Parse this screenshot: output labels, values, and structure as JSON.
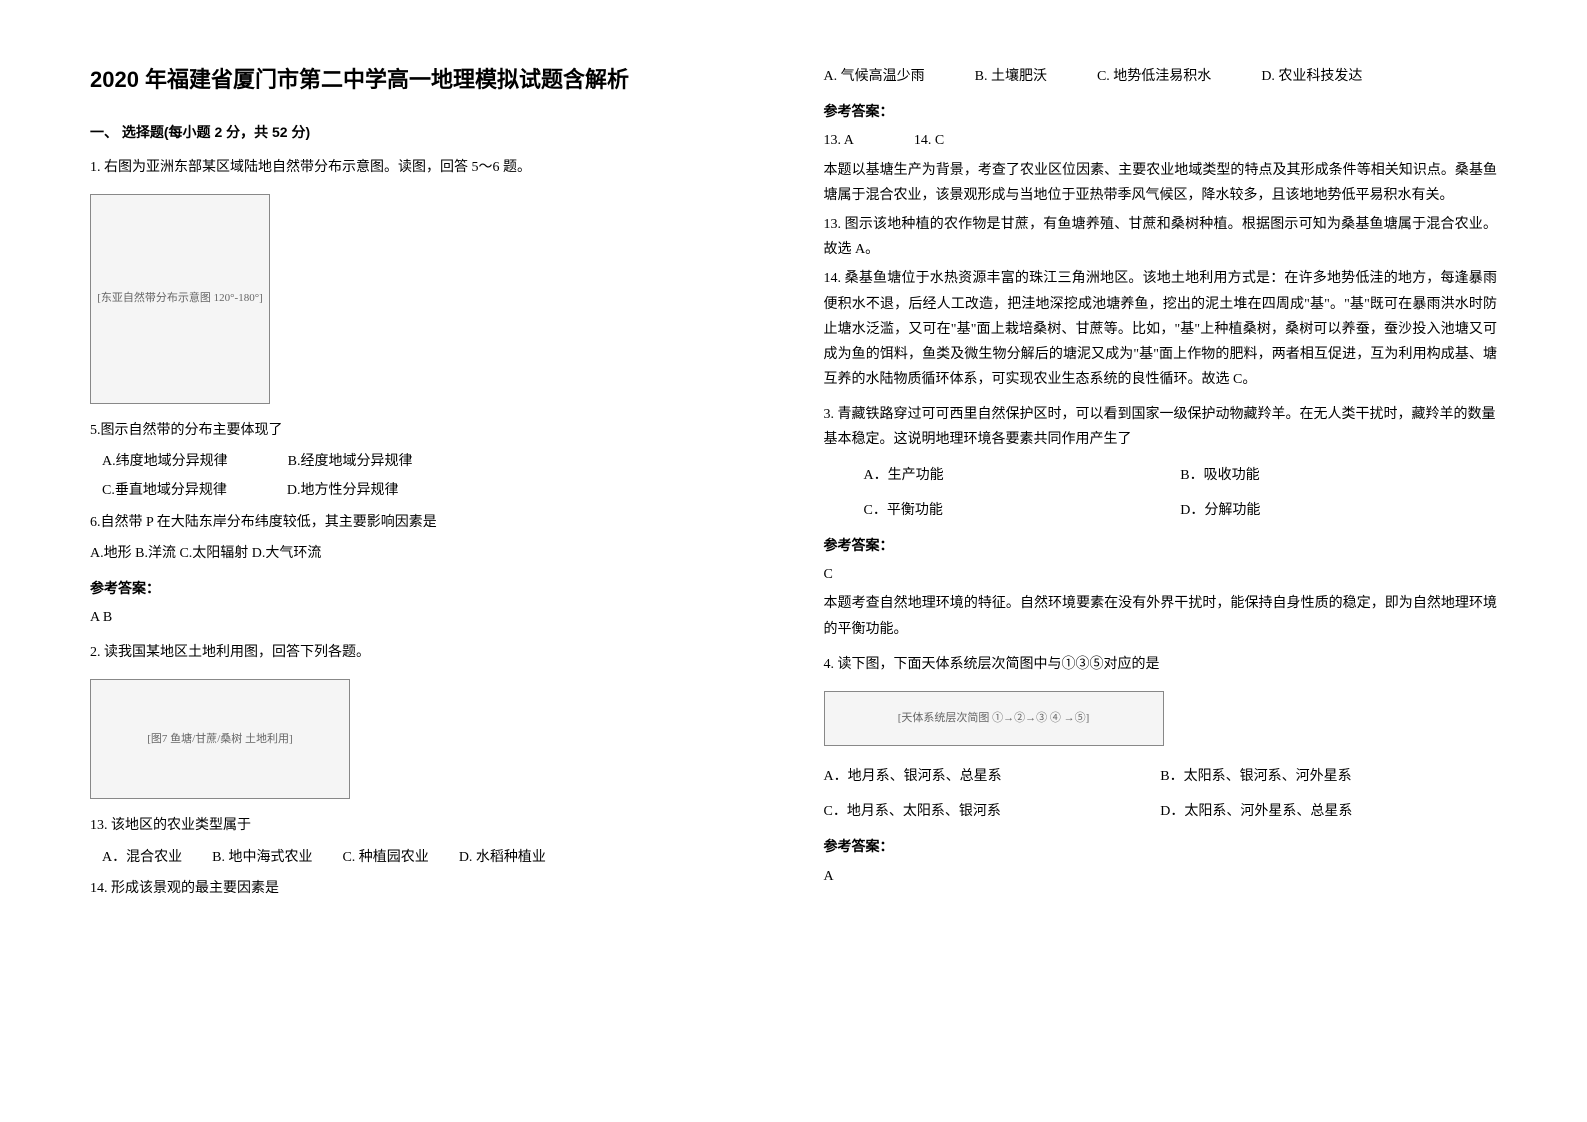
{
  "title": "2020 年福建省厦门市第二中学高一地理模拟试题含解析",
  "section1": "一、 选择题(每小题 2 分，共 52 分)",
  "q1": {
    "intro": "1. 右图为亚洲东部某区域陆地自然带分布示意图。读图，回答 5～6 题。",
    "img_label": "[东亚自然带分布示意图 120°-180°]",
    "s5": "5.图示自然带的分布主要体现了",
    "s5_opts": {
      "a": "A.纬度地域分异规律",
      "b": "B.经度地域分异规律",
      "c": "C.垂直地域分异规律",
      "d": "D.地方性分异规律"
    },
    "s6": "6.自然带 P 在大陆东岸分布纬度较低，其主要影响因素是",
    "s6_opts": "A.地形  B.洋流  C.太阳辐射  D.大气环流",
    "ans_label": "参考答案：",
    "ans": "A  B"
  },
  "q2": {
    "intro": "2. 读我国某地区土地利用图，回答下列各题。",
    "img_label": "[图7 鱼塘/甘蔗/桑树 土地利用]",
    "s13": "13.  该地区的农业类型属于",
    "s13_opts": {
      "a": "A．混合农业",
      "b": "B.  地中海式农业",
      "c": "C.  种植园农业",
      "d": "D.  水稻种植业"
    },
    "s14": "14.  形成该景观的最主要因素是",
    "s14_opts": {
      "a": "A.  气候高温少雨",
      "b": "B.  土壤肥沃",
      "c": "C.  地势低洼易积水",
      "d": "D.  农业科技发达"
    },
    "ans_label": "参考答案：",
    "ans13": "13.  A",
    "ans14": "14.  C",
    "exp1": "本题以基塘生产为背景，考查了农业区位因素、主要农业地域类型的特点及其形成条件等相关知识点。桑基鱼塘属于混合农业，该景观形成与当地位于亚热带季风气候区，降水较多，且该地地势低平易积水有关。",
    "exp2": "13.  图示该地种植的农作物是甘蔗，有鱼塘养殖、甘蔗和桑树种植。根据图示可知为桑基鱼塘属于混合农业。故选 A。",
    "exp3": "14.  桑基鱼塘位于水热资源丰富的珠江三角洲地区。该地土地利用方式是：在许多地势低洼的地方，每逢暴雨便积水不退，后经人工改造，把洼地深挖成池塘养鱼，挖出的泥土堆在四周成\"基\"。\"基\"既可在暴雨洪水时防止塘水泛滥，又可在\"基\"面上栽培桑树、甘蔗等。比如，\"基\"上种植桑树，桑树可以养蚕，蚕沙投入池塘又可成为鱼的饵料，鱼类及微生物分解后的塘泥又成为\"基\"面上作物的肥料，两者相互促进，互为利用构成基、塘互养的水陆物质循环体系，可实现农业生态系统的良性循环。故选 C。"
  },
  "q3": {
    "intro": "3. 青藏铁路穿过可可西里自然保护区时，可以看到国家一级保护动物藏羚羊。在无人类干扰时，藏羚羊的数量基本稳定。这说明地理环境各要素共同作用产生了",
    "opts": {
      "a": "A．生产功能",
      "b": "B．吸收功能",
      "c": "C．平衡功能",
      "d": "D．分解功能"
    },
    "ans_label": "参考答案：",
    "ans": "C",
    "exp": "本题考查自然地理环境的特征。自然环境要素在没有外界干扰时，能保持自身性质的稳定，即为自然地理环境的平衡功能。"
  },
  "q4": {
    "intro": "4. 读下图，下面天体系统层次简图中与①③⑤对应的是",
    "img_label": "[天体系统层次简图 ①→②→③ ④ →⑤]",
    "opts": {
      "a": "A．地月系、银河系、总星系",
      "b": "B．太阳系、银河系、河外星系",
      "c": "C．地月系、太阳系、银河系",
      "d": "D．太阳系、河外星系、总星系"
    },
    "ans_label": "参考答案：",
    "ans": "A"
  }
}
